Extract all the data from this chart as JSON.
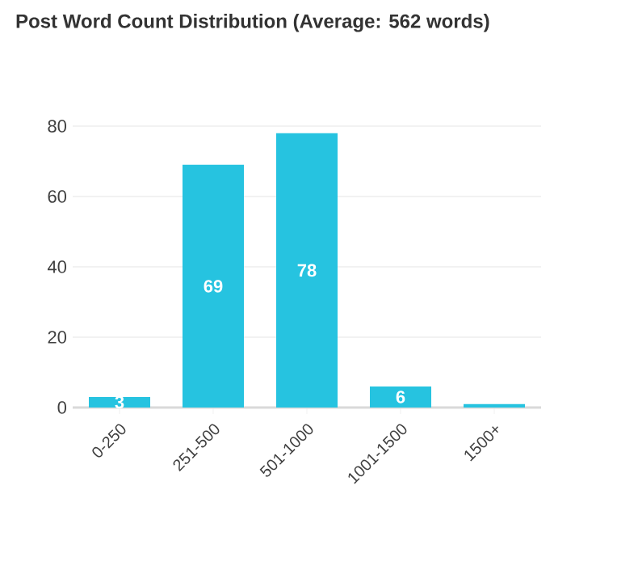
{
  "chart_data": {
    "type": "bar",
    "title": "Post Word Count Distribution (Average: 562 words)",
    "categories": [
      "0-250",
      "251-500",
      "501-1000",
      "1001-1500",
      "1500+"
    ],
    "values": [
      3,
      69,
      78,
      6,
      1
    ],
    "color": "#26c3e0",
    "ylim": [
      0,
      80
    ],
    "yticks": [
      0,
      20,
      40,
      60,
      80
    ],
    "grid": "y",
    "value_labels": [
      "3",
      "69",
      "78",
      "6",
      null
    ]
  }
}
